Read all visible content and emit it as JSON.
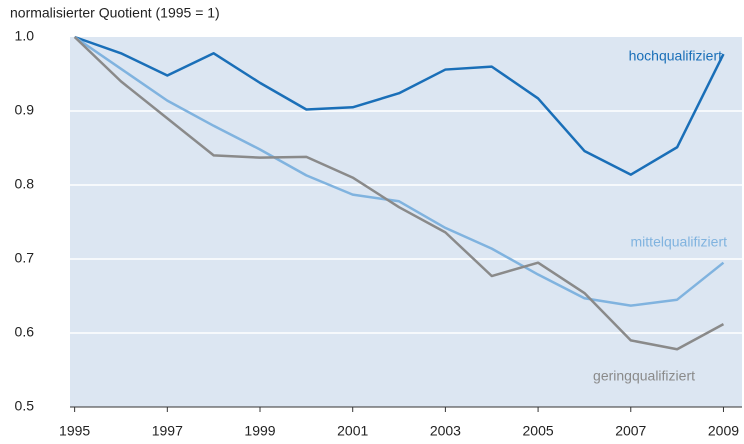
{
  "chart_data": {
    "type": "line",
    "y_label": "normalisierter Quotient (1995 = 1)",
    "x": [
      1995,
      1996,
      1997,
      1998,
      1999,
      2000,
      2001,
      2002,
      2003,
      2004,
      2005,
      2006,
      2007,
      2008,
      2009
    ],
    "series": [
      {
        "name": "hochqualifiziert",
        "color": "#1a6fb8",
        "values": [
          1.0,
          0.978,
          0.948,
          0.978,
          0.938,
          0.902,
          0.905,
          0.924,
          0.956,
          0.96,
          0.917,
          0.846,
          0.814,
          0.851,
          0.977
        ]
      },
      {
        "name": "mittelqualifiziert",
        "color": "#80b3df",
        "values": [
          1.0,
          0.957,
          0.914,
          0.88,
          0.848,
          0.813,
          0.787,
          0.778,
          0.742,
          0.714,
          0.679,
          0.647,
          0.637,
          0.645,
          0.695
        ]
      },
      {
        "name": "geringqualifiziert",
        "color": "#8a8a8a",
        "values": [
          1.0,
          0.94,
          0.89,
          0.84,
          0.837,
          0.838,
          0.81,
          0.77,
          0.736,
          0.677,
          0.695,
          0.654,
          0.59,
          0.578,
          0.612
        ]
      }
    ],
    "xlim": [
      1994.9,
      2009.4
    ],
    "xticks": [
      1995,
      1997,
      1999,
      2001,
      2003,
      2005,
      2007,
      2009
    ],
    "ylim": [
      0.5,
      1.0
    ],
    "yticks": [
      0.5,
      0.6,
      0.7,
      0.8,
      0.9,
      {
        "value": 1.0,
        "label": "1.0"
      }
    ],
    "grid": true,
    "background": "#dce6f2"
  }
}
